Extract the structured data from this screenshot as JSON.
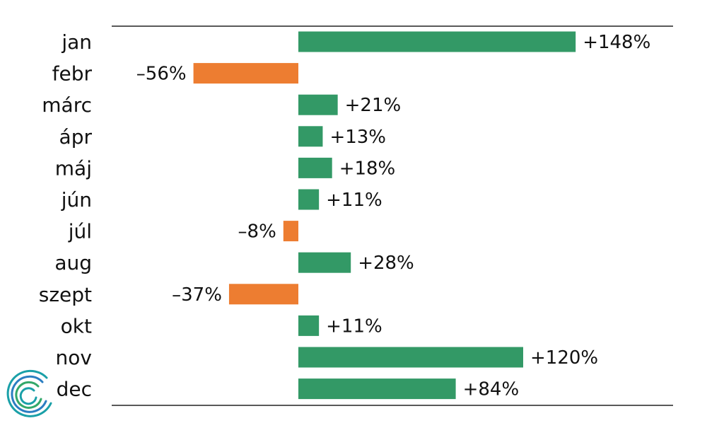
{
  "colors": {
    "positive": "#339966",
    "negative": "#ed7d31"
  },
  "logo": {
    "icon": "spiral-logo-icon",
    "colors": [
      "#1aa0a8",
      "#2b7ec1",
      "#33a86a"
    ]
  },
  "chart_data": {
    "type": "bar",
    "orientation": "horizontal",
    "categories": [
      "jan",
      "febr",
      "márc",
      "ápr",
      "máj",
      "jún",
      "júl",
      "aug",
      "szept",
      "okt",
      "nov",
      "dec"
    ],
    "values": [
      148,
      -56,
      21,
      13,
      18,
      11,
      -8,
      28,
      -37,
      11,
      120,
      84
    ],
    "labels": [
      "+148%",
      "–56%",
      "+21%",
      "+13%",
      "+18%",
      "+11%",
      "–8%",
      "+28%",
      "–37%",
      "+11%",
      "+120%",
      "+84%"
    ],
    "unit": "%",
    "title": "",
    "xlabel": "",
    "ylabel": "",
    "xlim": [
      -100,
      200
    ],
    "grid": false,
    "legend": "none"
  }
}
